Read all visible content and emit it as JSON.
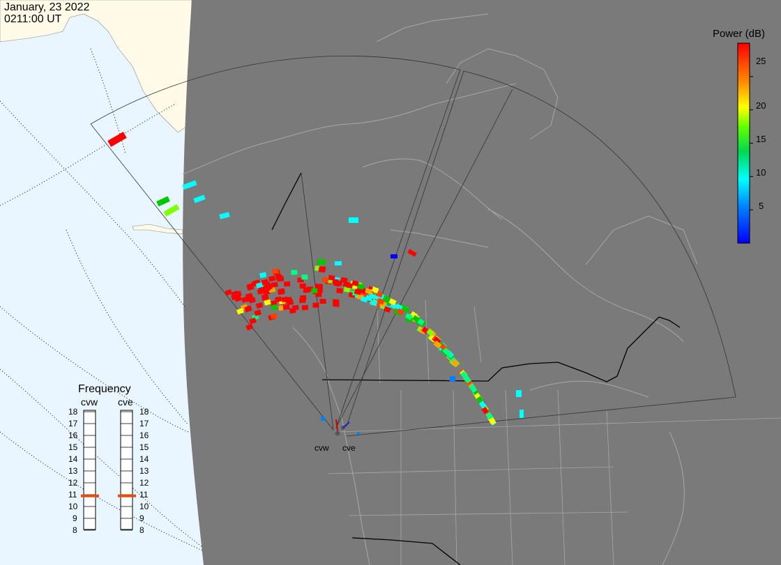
{
  "title": {
    "date": "January, 23 2022",
    "time": "0211:00 UT"
  },
  "colorbar": {
    "title": "Power (dB)",
    "ticks": [
      "25",
      "20",
      "15",
      "10",
      "5"
    ],
    "tick_values": [
      25,
      20,
      15,
      10,
      5
    ],
    "range": [
      0,
      30
    ],
    "colors": [
      "#0000ff",
      "#0080ff",
      "#00ffff",
      "#00ff80",
      "#00c800",
      "#80ff00",
      "#ffff00",
      "#ffa500",
      "#ff4000",
      "#ff0000"
    ]
  },
  "frequency_panel": {
    "title": "Frequency",
    "radars": [
      {
        "name": "cvw",
        "freq_mhz": 10.9
      },
      {
        "name": "cve",
        "freq_mhz": 10.9
      }
    ],
    "scale": [
      "18",
      "17",
      "16",
      "15",
      "14",
      "13",
      "12",
      "11",
      "10",
      "9",
      "8"
    ],
    "marker_color": "#e05010"
  },
  "sites": [
    {
      "label": "cvw"
    },
    {
      "label": "cve"
    }
  ],
  "colors": {
    "ocean": "#eaf6ff",
    "land": "#fffbe8",
    "night": "#7a7a7a",
    "coast": "#a8a8a8",
    "border": "#000000"
  }
}
